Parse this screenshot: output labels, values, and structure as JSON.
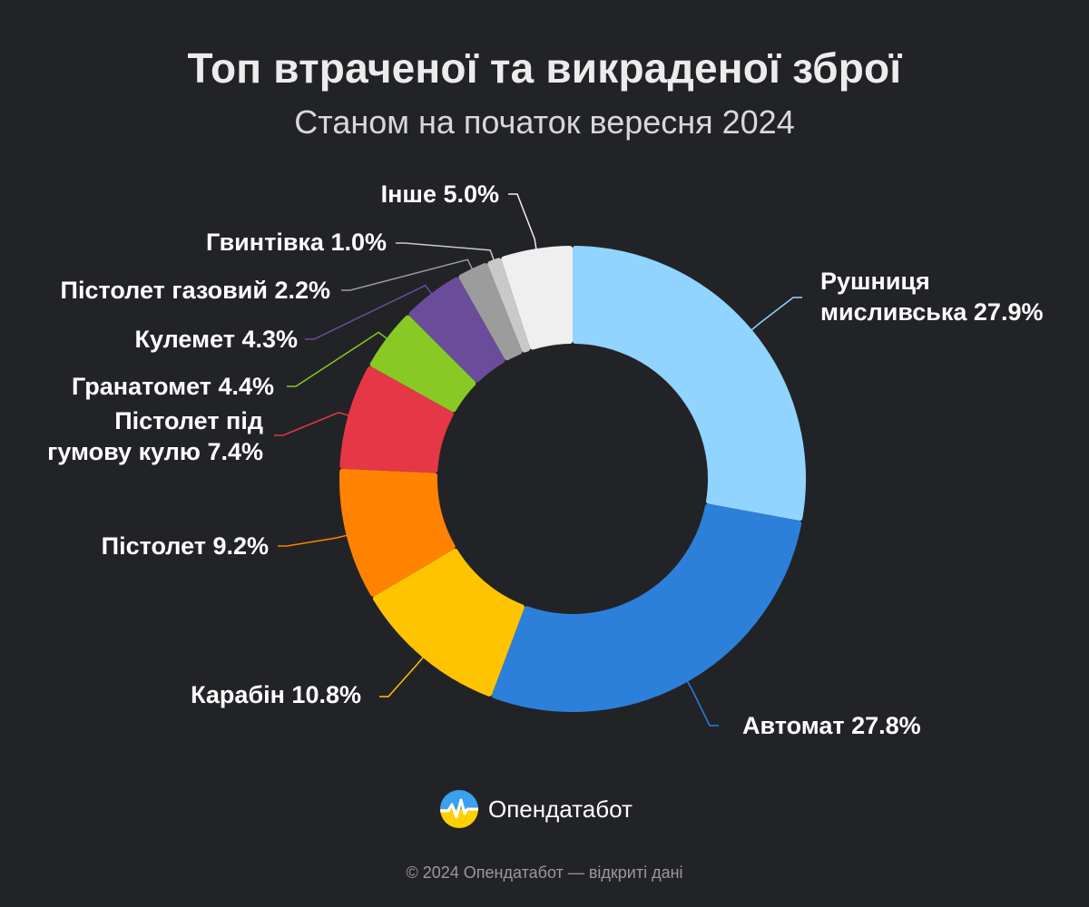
{
  "header": {
    "title": "Топ втраченої та викраденої зброї",
    "subtitle": "Станом на початок вересня 2024"
  },
  "chart_data": {
    "type": "pie",
    "variant": "donut",
    "title": "Топ втраченої та викраденої зброї",
    "subtitle": "Станом на початок вересня 2024",
    "slices": [
      {
        "label": "Рушниця мисливська 27.9%",
        "value": 27.9,
        "color": "#90d4ff"
      },
      {
        "label": "Автомат 27.8%",
        "value": 27.8,
        "color": "#2d80d9"
      },
      {
        "label": "Карабін 10.8%",
        "value": 10.8,
        "color": "#ffc400"
      },
      {
        "label": "Пістолет 9.2%",
        "value": 9.2,
        "color": "#ff8200"
      },
      {
        "label": "Пістолет під гумову кулю 7.4%",
        "value": 7.4,
        "color": "#e53745"
      },
      {
        "label": "Гранатомет 4.4%",
        "value": 4.4,
        "color": "#88c925"
      },
      {
        "label": "Кулемет 4.3%",
        "value": 4.3,
        "color": "#6b4c9a"
      },
      {
        "label": "Пістолет газовий 2.2%",
        "value": 2.2,
        "color": "#9c9c9c"
      },
      {
        "label": "Гвинтівка 1.0%",
        "value": 1.0,
        "color": "#c9c9c9"
      },
      {
        "label": "Інше 5.0%",
        "value": 5.0,
        "color": "#efefef"
      }
    ]
  },
  "logo": {
    "text": "Опендатабот",
    "icon": "opendatabot-logo-icon"
  },
  "footer": {
    "text": "© 2024 Опендатабот — відкриті дані"
  }
}
